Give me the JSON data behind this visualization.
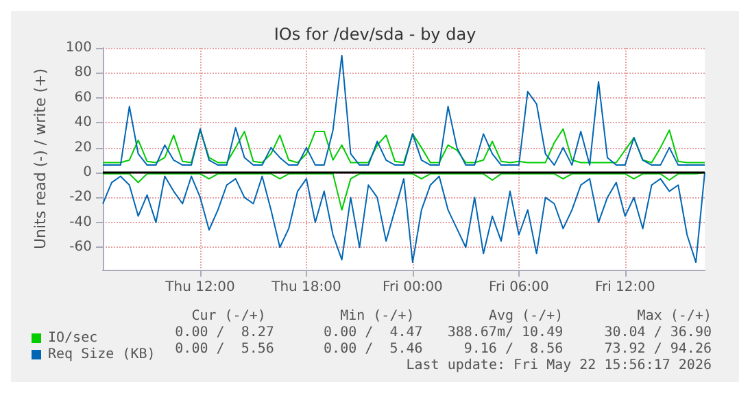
{
  "chart_data": {
    "type": "line",
    "title": "IOs for /dev/sda - by day",
    "ylabel": "Units read (-) / write (+)",
    "x": [
      "2026-05-21T06:30",
      "2026-05-21T07:00",
      "2026-05-21T07:30",
      "2026-05-21T08:00",
      "2026-05-21T08:30",
      "2026-05-21T09:00",
      "2026-05-21T09:30",
      "2026-05-21T10:00",
      "2026-05-21T10:30",
      "2026-05-21T11:00",
      "2026-05-21T11:30",
      "2026-05-21T12:00",
      "2026-05-21T12:30",
      "2026-05-21T13:00",
      "2026-05-21T13:30",
      "2026-05-21T14:00",
      "2026-05-21T14:30",
      "2026-05-21T15:00",
      "2026-05-21T15:30",
      "2026-05-21T16:00",
      "2026-05-21T16:30",
      "2026-05-21T17:00",
      "2026-05-21T17:30",
      "2026-05-21T18:00",
      "2026-05-21T18:30",
      "2026-05-21T19:00",
      "2026-05-21T19:30",
      "2026-05-21T20:00",
      "2026-05-21T20:30",
      "2026-05-21T21:00",
      "2026-05-21T21:30",
      "2026-05-21T22:00",
      "2026-05-21T22:30",
      "2026-05-21T23:00",
      "2026-05-21T23:30",
      "2026-05-22T00:00",
      "2026-05-22T00:30",
      "2026-05-22T01:00",
      "2026-05-22T01:30",
      "2026-05-22T02:00",
      "2026-05-22T02:30",
      "2026-05-22T03:00",
      "2026-05-22T03:30",
      "2026-05-22T04:00",
      "2026-05-22T04:30",
      "2026-05-22T05:00",
      "2026-05-22T05:30",
      "2026-05-22T06:00",
      "2026-05-22T06:30",
      "2026-05-22T07:00",
      "2026-05-22T07:30",
      "2026-05-22T08:00",
      "2026-05-22T08:30",
      "2026-05-22T09:00",
      "2026-05-22T09:30",
      "2026-05-22T10:00",
      "2026-05-22T10:30",
      "2026-05-22T11:00",
      "2026-05-22T11:30",
      "2026-05-22T12:00",
      "2026-05-22T12:30",
      "2026-05-22T13:00",
      "2026-05-22T13:30",
      "2026-05-22T14:00",
      "2026-05-22T14:30",
      "2026-05-22T15:00",
      "2026-05-22T15:30",
      "2026-05-22T16:00",
      "2026-05-22T16:30"
    ],
    "series": [
      {
        "name": "IO/sec",
        "color": "#00cc00",
        "values": [
          8,
          8,
          8,
          10,
          26,
          9,
          8,
          12,
          30,
          9,
          8,
          34,
          12,
          8,
          8,
          20,
          33,
          9,
          8,
          15,
          30,
          10,
          8,
          15,
          33,
          33,
          10,
          22,
          8,
          8,
          8,
          22,
          30,
          9,
          8,
          31,
          20,
          8,
          8,
          22,
          18,
          8,
          8,
          10,
          25,
          9,
          8,
          9,
          8,
          8,
          8,
          24,
          35,
          10,
          8,
          8,
          8,
          8,
          8,
          18,
          28,
          10,
          8,
          20,
          34,
          9,
          8,
          8,
          8
        ]
      },
      {
        "color": "#00cc00",
        "values": [
          -1,
          -1,
          -1,
          -1,
          -8,
          -1,
          -1,
          -1,
          -1,
          -1,
          -1,
          -1,
          -5,
          -1,
          -1,
          -1,
          -1,
          -1,
          -1,
          -1,
          -5,
          -1,
          -1,
          -1,
          -1,
          -1,
          -1,
          -30,
          -5,
          -1,
          -1,
          -1,
          -1,
          -1,
          -1,
          -1,
          -5,
          -1,
          -1,
          -1,
          -1,
          -1,
          -1,
          -1,
          -6,
          -1,
          -1,
          -1,
          -1,
          -1,
          -1,
          -1,
          -5,
          -1,
          -1,
          -1,
          -1,
          -1,
          -1,
          -1,
          -5,
          -1,
          -1,
          -1,
          -6,
          -1,
          -1,
          -1,
          0
        ]
      },
      {
        "name": "Req Size (KB)",
        "color": "#0066b3",
        "values": [
          6,
          6,
          6,
          53,
          15,
          6,
          6,
          22,
          10,
          6,
          6,
          35,
          10,
          6,
          6,
          36,
          12,
          6,
          6,
          20,
          12,
          6,
          6,
          20,
          6,
          6,
          34,
          94,
          15,
          6,
          6,
          25,
          10,
          6,
          6,
          31,
          10,
          6,
          6,
          53,
          20,
          6,
          6,
          31,
          15,
          6,
          6,
          6,
          65,
          55,
          15,
          6,
          20,
          6,
          33,
          6,
          73,
          12,
          6,
          6,
          28,
          10,
          6,
          6,
          20,
          6,
          6,
          6,
          6
        ]
      },
      {
        "color": "#0066b3",
        "values": [
          -25,
          -8,
          -3,
          -10,
          -35,
          -18,
          -40,
          -3,
          -15,
          -25,
          -3,
          -20,
          -46,
          -30,
          -10,
          -5,
          -20,
          -25,
          -3,
          -30,
          -60,
          -45,
          -15,
          -5,
          -40,
          -15,
          -50,
          -70,
          -20,
          -60,
          -10,
          -20,
          -55,
          -30,
          -5,
          -72,
          -30,
          -10,
          -3,
          -30,
          -45,
          -60,
          -20,
          -65,
          -35,
          -55,
          -15,
          -50,
          -30,
          -65,
          -20,
          -25,
          -45,
          -30,
          -10,
          -5,
          -40,
          -20,
          -8,
          -35,
          -20,
          -45,
          -10,
          -5,
          -15,
          -10,
          -50,
          -72,
          0
        ]
      }
    ],
    "xlim": [
      "2026-05-21T06:30",
      "2026-05-22T16:30"
    ],
    "xticks": [
      {
        "value": "2026-05-21T12:00",
        "label": "Thu 12:00"
      },
      {
        "value": "2026-05-21T18:00",
        "label": "Thu 18:00"
      },
      {
        "value": "2026-05-22T00:00",
        "label": "Fri 00:00"
      },
      {
        "value": "2026-05-22T06:00",
        "label": "Fri 06:00"
      },
      {
        "value": "2026-05-22T12:00",
        "label": "Fri 12:00"
      }
    ],
    "ylim": [
      -78,
      100
    ],
    "yticks": [
      -60,
      -40,
      -20,
      0,
      20,
      40,
      60,
      80,
      100
    ],
    "grid": true,
    "legend": "bottom left",
    "marker": "none",
    "line_style": "solid",
    "ref_lines": [
      {
        "axis": "y",
        "value": 0,
        "color": "#000000"
      }
    ],
    "annotations": [
      "Cur (-/+)         Min (-/+)         Avg (-/+)         Max (-/+)",
      "0.00 /  8.27      0.00 /  4.47   388.67m/ 10.49     30.04 / 36.90",
      "0.00 /  5.56      0.00 /  5.46     9.16 /  8.56     73.92 / 94.26",
      "Last update: Fri May 22 15:56:17 2026"
    ]
  }
}
